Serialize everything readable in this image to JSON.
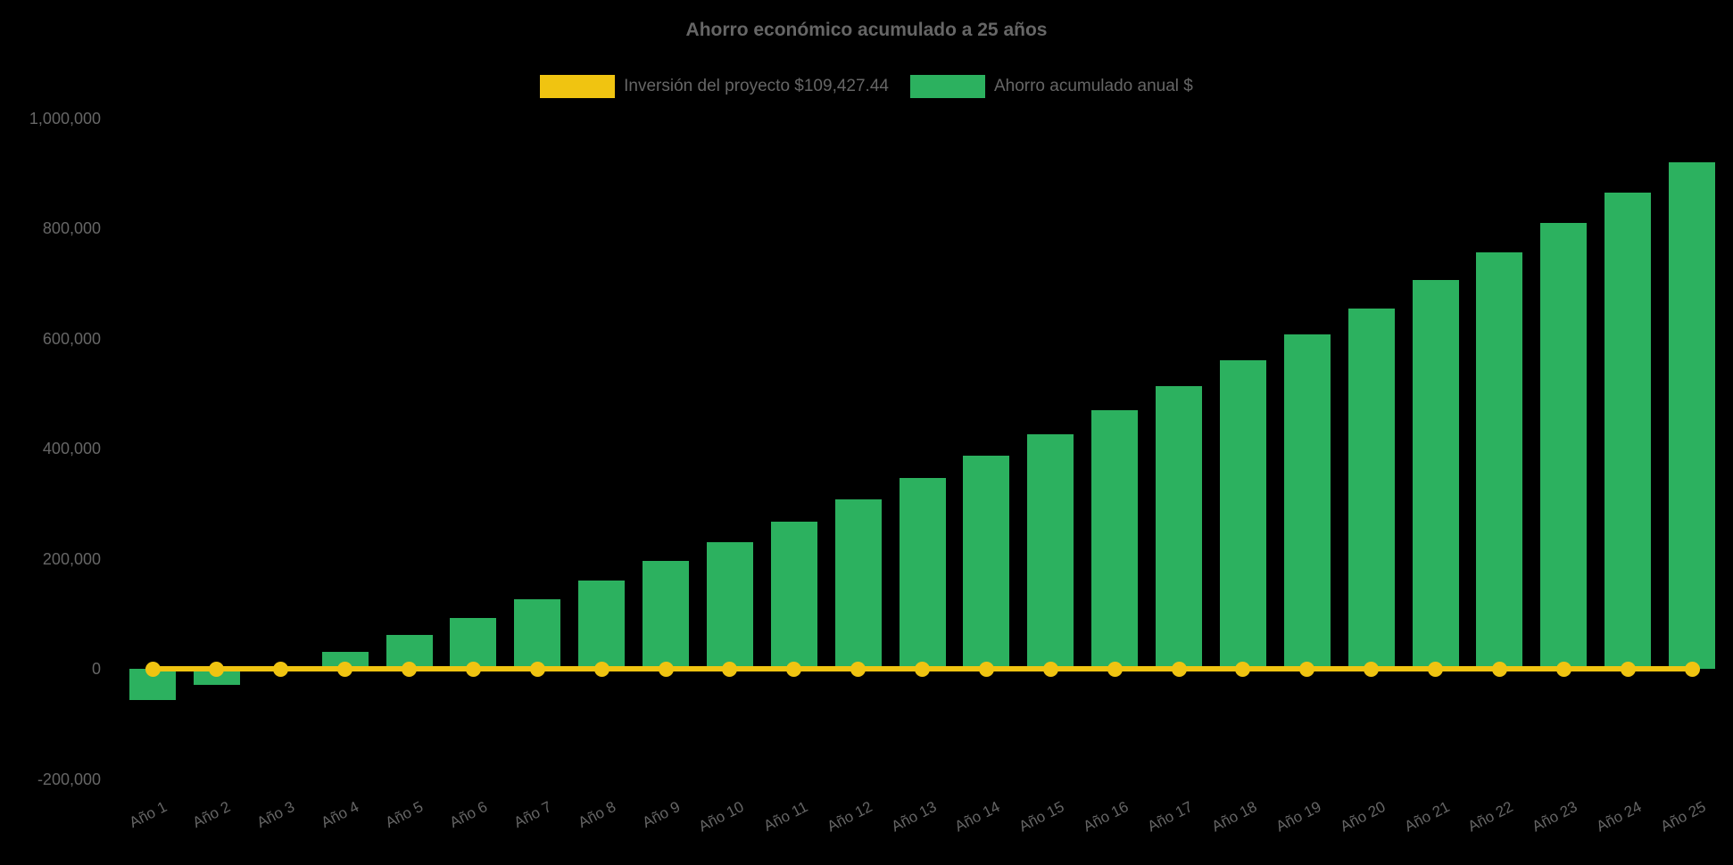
{
  "page": {
    "background": "#000000"
  },
  "chart_data": {
    "type": "bar",
    "title": "Ahorro económico acumulado a 25 años",
    "categories": [
      "Año 1",
      "Año 2",
      "Año 3",
      "Año 4",
      "Año 5",
      "Año 6",
      "Año 7",
      "Año 8",
      "Año 9",
      "Año 10",
      "Año 11",
      "Año 12",
      "Año 13",
      "Año 14",
      "Año 15",
      "Año 16",
      "Año 17",
      "Año 18",
      "Año 19",
      "Año 20",
      "Año 21",
      "Año 22",
      "Año 23",
      "Año 24",
      "Año 25"
    ],
    "series": [
      {
        "name": "Inversión del proyecto $109,427.44",
        "type": "line",
        "color": "#f0c411",
        "marker": "circle",
        "values": [
          0,
          0,
          0,
          0,
          0,
          0,
          0,
          0,
          0,
          0,
          0,
          0,
          0,
          0,
          0,
          0,
          0,
          0,
          0,
          0,
          0,
          0,
          0,
          0,
          0
        ]
      },
      {
        "name": "Ahorro acumulado anual $",
        "type": "bar",
        "color": "#2cb15f",
        "values": [
          -56000,
          -28500,
          1000,
          30000,
          62000,
          93000,
          127000,
          160000,
          196000,
          230000,
          268000,
          307000,
          347000,
          387000,
          426000,
          470000,
          514000,
          560000,
          607000,
          655000,
          706000,
          757000,
          810000,
          865000,
          920000
        ]
      }
    ],
    "y_axis": {
      "min": -200000,
      "max": 1000000,
      "tick_step": 200000,
      "tick_values": [
        1000000,
        800000,
        600000,
        400000,
        200000,
        0,
        -200000
      ],
      "tick_labels": [
        "1,000,000",
        "800,000",
        "600,000",
        "400,000",
        "200,000",
        "0",
        "-200,000"
      ]
    },
    "x_axis": {
      "label_rotation_deg": -27
    },
    "legend_position": "top",
    "grid": false,
    "text_color": "#666666",
    "background": "#000000"
  }
}
